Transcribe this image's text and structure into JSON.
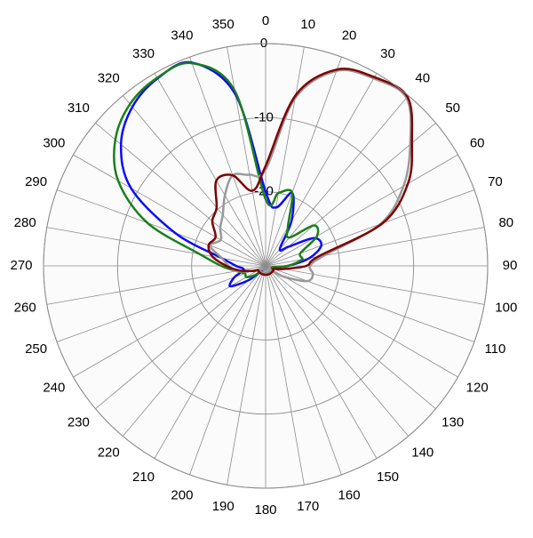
{
  "chart_data": {
    "type": "polar",
    "theta": [
      0,
      10,
      20,
      30,
      40,
      50,
      60,
      70,
      80,
      90,
      100,
      110,
      120,
      130,
      140,
      150,
      160,
      170,
      180,
      190,
      200,
      210,
      220,
      230,
      240,
      250,
      260,
      270,
      280,
      290,
      300,
      310,
      320,
      330,
      340,
      350
    ],
    "rlim": [
      -30,
      0
    ],
    "rticks": [
      -20,
      -10,
      0
    ],
    "grid": true,
    "series": [
      {
        "color": "#0a0aff",
        "values": [
          -20,
          -22,
          -19.5,
          -23,
          -27,
          -26,
          -22.5,
          -22,
          -24,
          -27,
          -29,
          -29,
          -29,
          -29,
          -29,
          -29,
          -29,
          -29,
          -29,
          -29,
          -29,
          -29,
          -29,
          -27,
          -24.5,
          -25.5,
          -27,
          -26,
          -24,
          -17,
          -9,
          -4.5,
          -2,
          -0.8,
          -0.8,
          -6.5
        ]
      },
      {
        "color": "#1a7f1a",
        "values": [
          -21,
          -20,
          -19.5,
          -24,
          -25,
          -21.5,
          -22,
          -25,
          -25,
          -27,
          -29,
          -29,
          -29,
          -29,
          -29,
          -29,
          -29,
          -29,
          -29,
          -29,
          -29,
          -29,
          -29,
          -28,
          -27,
          -27,
          -26,
          -24,
          -21,
          -13,
          -7,
          -3.5,
          -1.5,
          -0.7,
          -0.9,
          -6
        ]
      },
      {
        "color": "#999999",
        "values": [
          -17,
          -7,
          -2,
          -0.8,
          -0.4,
          -4.5,
          -8.5,
          -13.5,
          -22,
          -24,
          -23.5,
          -24,
          -27,
          -29,
          -29,
          -29,
          -29,
          -29,
          -29,
          -29,
          -29,
          -29,
          -29,
          -29,
          -29,
          -28,
          -26,
          -25,
          -24,
          -22,
          -23,
          -22,
          -21,
          -19,
          -17,
          -17.5
        ]
      },
      {
        "color": "#7f0000",
        "values": [
          -16.5,
          -6.6,
          -1.8,
          -0.6,
          -0.2,
          -4.2,
          -7.8,
          -13.2,
          -22.8,
          -24.5,
          -27.6,
          -28.8,
          -28.8,
          -28.8,
          -28.8,
          -28.8,
          -28.8,
          -28.8,
          -28.8,
          -28.8,
          -28.8,
          -28.8,
          -28.8,
          -28.8,
          -28.8,
          -28,
          -26.4,
          -24.7,
          -22.7,
          -21.8,
          -22.2,
          -20.6,
          -19.7,
          -16.7,
          -17,
          -19.7
        ]
      }
    ]
  }
}
